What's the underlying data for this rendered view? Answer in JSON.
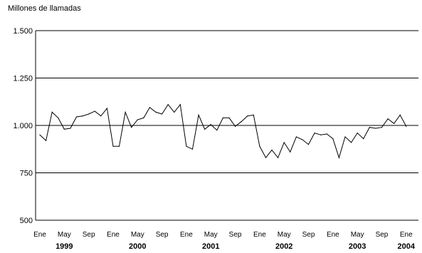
{
  "chart_data": {
    "type": "line",
    "title": "",
    "ylabel": "Millones de llamadas",
    "xlabel": "",
    "ylim": [
      500,
      1500
    ],
    "yticks": [
      500,
      750,
      1000,
      1250,
      1500
    ],
    "ytick_labels": [
      "500",
      "750",
      "1.000",
      "1.250",
      "1.500"
    ],
    "grid": "horizontal",
    "legend": "none",
    "x_month_ticks": [
      {
        "label": "Ene",
        "month_index": 0
      },
      {
        "label": "May",
        "month_index": 4
      },
      {
        "label": "Sep",
        "month_index": 8
      },
      {
        "label": "Ene",
        "month_index": 12
      },
      {
        "label": "May",
        "month_index": 16
      },
      {
        "label": "Sep",
        "month_index": 20
      },
      {
        "label": "Ene",
        "month_index": 24
      },
      {
        "label": "May",
        "month_index": 28
      },
      {
        "label": "Sep",
        "month_index": 32
      },
      {
        "label": "Ene",
        "month_index": 36
      },
      {
        "label": "May",
        "month_index": 40
      },
      {
        "label": "Sep",
        "month_index": 44
      },
      {
        "label": "Ene",
        "month_index": 48
      },
      {
        "label": "May",
        "month_index": 52
      },
      {
        "label": "Sep",
        "month_index": 56
      },
      {
        "label": "Ene",
        "month_index": 60
      }
    ],
    "x_years": [
      {
        "label": "1999",
        "month_index": 4
      },
      {
        "label": "2000",
        "month_index": 16
      },
      {
        "label": "2001",
        "month_index": 28
      },
      {
        "label": "2002",
        "month_index": 40
      },
      {
        "label": "2003",
        "month_index": 52
      },
      {
        "label": "2004",
        "month_index": 60
      }
    ],
    "series": [
      {
        "color": "#000000",
        "x_start": "1999-01",
        "values": [
          950,
          920,
          1070,
          1040,
          980,
          985,
          1045,
          1050,
          1060,
          1075,
          1050,
          1090,
          890,
          890,
          1070,
          990,
          1030,
          1040,
          1095,
          1070,
          1060,
          1110,
          1070,
          1110,
          890,
          875,
          1055,
          980,
          1005,
          975,
          1040,
          1040,
          995,
          1020,
          1050,
          1055,
          890,
          830,
          870,
          830,
          910,
          860,
          940,
          925,
          900,
          960,
          950,
          955,
          930,
          830,
          940,
          910,
          960,
          930,
          990,
          985,
          990,
          1035,
          1010,
          1055,
          995
        ]
      }
    ]
  }
}
